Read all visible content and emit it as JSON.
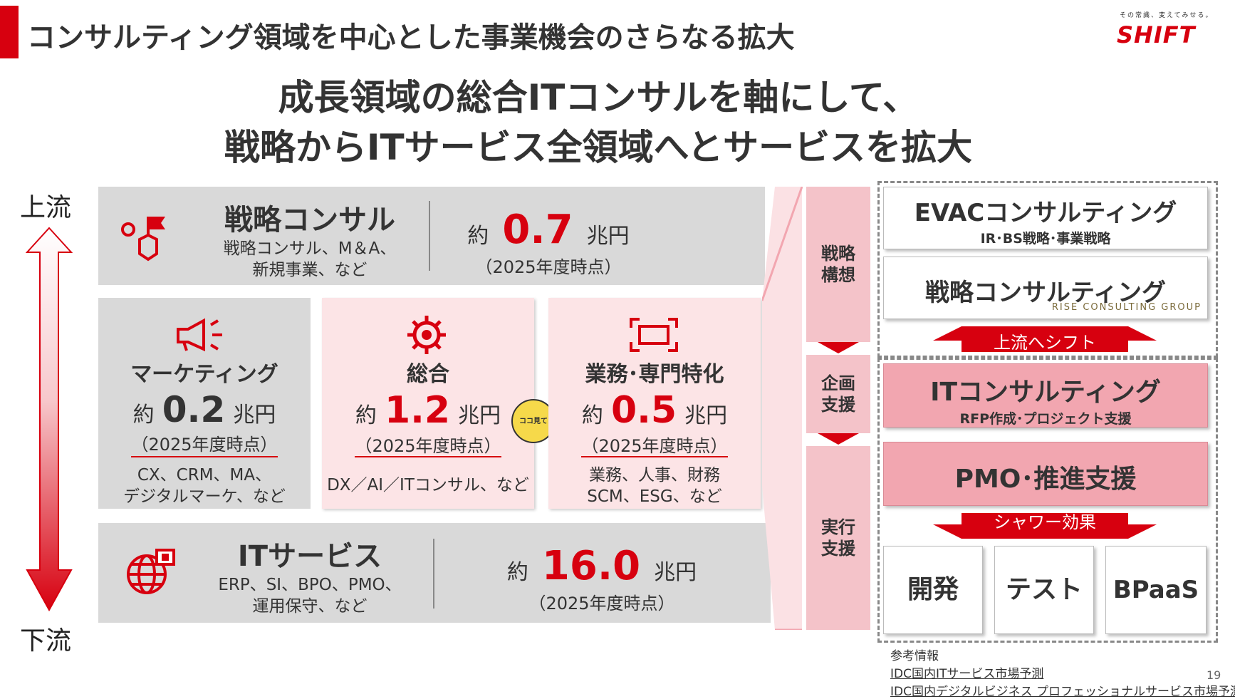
{
  "header": {
    "title": "コンサルティング領域を中心とした事業機会のさらなる拡大",
    "slogan": "その常識、変えてみせる。",
    "logo_text": "SHIFT"
  },
  "headline": {
    "line1": "成長領域の総合ITコンサルを軸にして、",
    "line2": "戦略からITサービス全領域へとサービスを拡大"
  },
  "flow": {
    "top_label": "上流",
    "bottom_label": "下流"
  },
  "markets": {
    "strategy": {
      "title": "戦略コンサル",
      "sub1": "戦略コンサル、M＆A、",
      "sub2": "新規事業、など",
      "yaku": "約",
      "value": "0.7",
      "unit": "兆円",
      "note": "（2025年度時点）",
      "icon": "flag-hexagon-icon"
    },
    "marketing": {
      "title": "マーケティング",
      "yaku": "約",
      "value": "0.2",
      "unit": "兆円",
      "note": "（2025年度時点）",
      "ex1": "CX、CRM、MA、",
      "ex2": "デジタルマーケ、など",
      "icon": "megaphone-icon"
    },
    "general": {
      "title": "総合",
      "yaku": "約",
      "value": "1.2",
      "unit": "兆円",
      "note": "（2025年度時点）",
      "ex1": "DX／AI／ITコンサル、など",
      "icon": "gear-icon",
      "mascot_text": "ココ見て"
    },
    "specialized": {
      "title": "業務･専門特化",
      "yaku": "約",
      "value": "0.5",
      "unit": "兆円",
      "note": "（2025年度時点）",
      "ex1": "業務、人事、財務",
      "ex2": "SCM、ESG、など",
      "icon": "frame-icon"
    },
    "it_services": {
      "title": "ITサービス",
      "sub1": "ERP、SI、BPO、PMO、",
      "sub2": "運用保守、など",
      "yaku": "約",
      "value": "16.0",
      "unit": "兆円",
      "note": "（2025年度時点）",
      "icon": "globe-icon"
    }
  },
  "phases": {
    "p1_l1": "戦略",
    "p1_l2": "構想",
    "p2_l1": "企画",
    "p2_l2": "支援",
    "p3_l1": "実行",
    "p3_l2": "支援"
  },
  "services": {
    "evac_title": "EVACコンサルティング",
    "evac_sub": "IR･BS戦略･事業戦略",
    "strategy_title": "戦略コンサルティング",
    "rise_logo": "RISE CONSULTING GROUP",
    "upstream_shift": "上流へシフト",
    "it_title": "ITコンサルティング",
    "it_sub": "RFP作成･プロジェクト支援",
    "pmo_title": "PMO･推進支援",
    "shower": "シャワー効果",
    "dev": "開発",
    "test": "テスト",
    "bpaas": "BPaaS"
  },
  "references": {
    "heading": "参考情報",
    "ref1": "IDC国内ITサービス市場予測",
    "ref2": "IDC国内デジタルビジネス プロフェッショナルサービス市場予測"
  },
  "page_number": "19",
  "colors": {
    "accent_red": "#d7000f",
    "panel_gray": "#d9d9d9",
    "panel_pink": "#fce4e6",
    "service_pink": "#f2a6b0"
  }
}
